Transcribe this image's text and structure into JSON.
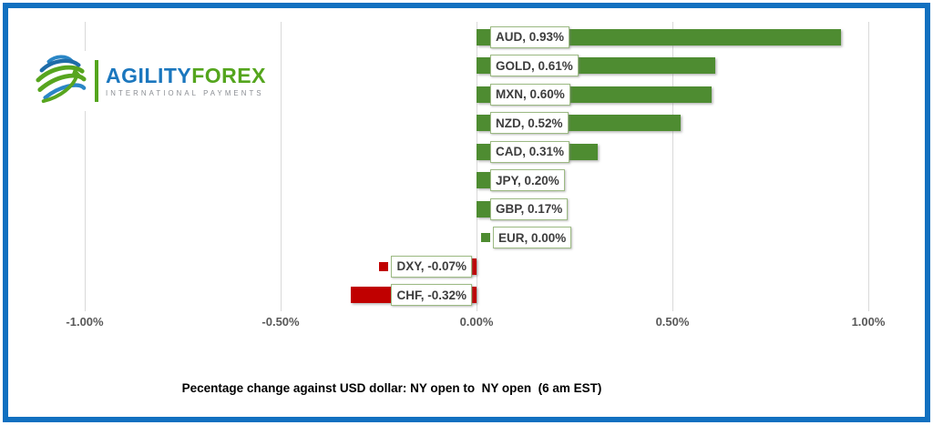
{
  "logo": {
    "brand_primary": "AGILITY",
    "brand_secondary": "FOREX",
    "tagline": "INTERNATIONAL PAYMENTS"
  },
  "chart_data": {
    "type": "bar",
    "orientation": "horizontal",
    "title": "Pecentage change against USD dollar: NY open to  NY open  (6 am EST)",
    "categories": [
      "AUD",
      "GOLD",
      "MXN",
      "NZD",
      "CAD",
      "JPY",
      "GBP",
      "EUR",
      "DXY",
      "CHF"
    ],
    "values": [
      0.93,
      0.61,
      0.6,
      0.52,
      0.31,
      0.2,
      0.17,
      0.0,
      -0.07,
      -0.32
    ],
    "labels": [
      "AUD, 0.93%",
      "GOLD, 0.61%",
      "MXN, 0.60%",
      "NZD, 0.52%",
      "CAD, 0.31%",
      "JPY, 0.20%",
      "GBP, 0.17%",
      "EUR, 0.00%",
      "DXY, -0.07%",
      "CHF, -0.32%"
    ],
    "legend_key_visible": [
      false,
      false,
      false,
      false,
      false,
      false,
      false,
      true,
      true,
      false
    ],
    "x_ticks": [
      "-1.00%",
      "-0.50%",
      "0.00%",
      "0.50%",
      "1.00%"
    ],
    "x_tick_values": [
      -1.0,
      -0.5,
      0.0,
      0.5,
      1.0
    ],
    "xlim": [
      -1.07,
      1.13
    ],
    "grid": true,
    "positive_color": "#4e8c31",
    "negative_color": "#c00000",
    "gridline_color": "#d9d9d9",
    "frame_color": "#1170c0"
  }
}
